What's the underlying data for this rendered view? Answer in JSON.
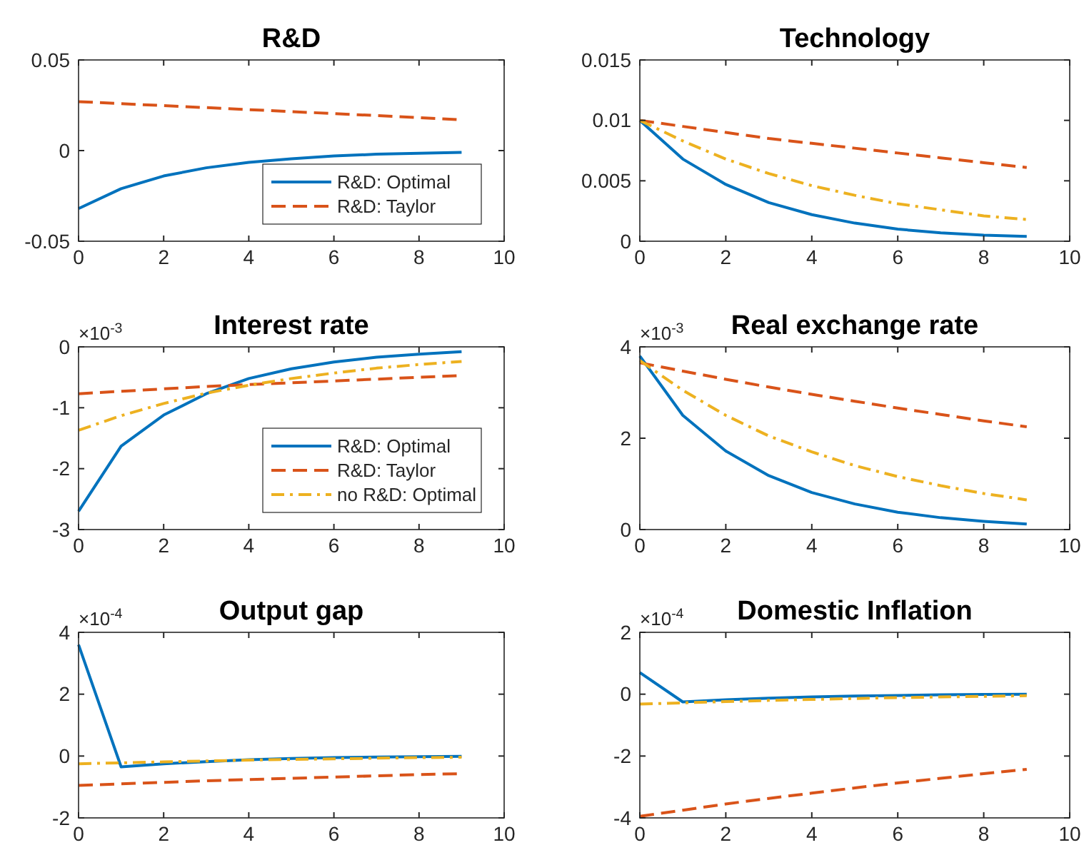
{
  "chart_data": [
    {
      "type": "line",
      "title": "R&D",
      "x": [
        0,
        1,
        2,
        3,
        4,
        5,
        6,
        7,
        8,
        9
      ],
      "xlim": [
        0,
        10
      ],
      "xticks": [
        0,
        2,
        4,
        6,
        8,
        10
      ],
      "ylim": [
        -0.05,
        0.05
      ],
      "yticks": [
        -0.05,
        0,
        0.05
      ],
      "legend": "bottom right",
      "series": [
        {
          "name": "R&D: Optimal",
          "color": "#0072bd",
          "line_style": "solid",
          "values": [
            -0.032,
            -0.021,
            -0.014,
            -0.0095,
            -0.0065,
            -0.0045,
            -0.003,
            -0.002,
            -0.0015,
            -0.001
          ]
        },
        {
          "name": "R&D: Taylor",
          "color": "#d95319",
          "line_style": "dashed",
          "values": [
            0.027,
            0.0259,
            0.0248,
            0.0237,
            0.0226,
            0.0215,
            0.0204,
            0.0193,
            0.0182,
            0.017
          ]
        }
      ]
    },
    {
      "type": "line",
      "title": "Technology",
      "x": [
        0,
        1,
        2,
        3,
        4,
        5,
        6,
        7,
        8,
        9
      ],
      "xlim": [
        0,
        10
      ],
      "xticks": [
        0,
        2,
        4,
        6,
        8,
        10
      ],
      "ylim": [
        0,
        0.015
      ],
      "yticks": [
        0,
        0.005,
        0.01,
        0.015
      ],
      "series": [
        {
          "color": "#0072bd",
          "line_style": "solid",
          "values": [
            0.01,
            0.0068,
            0.0047,
            0.0032,
            0.0022,
            0.0015,
            0.001,
            0.0007,
            0.0005,
            0.0004
          ]
        },
        {
          "color": "#d95319",
          "line_style": "dashed",
          "values": [
            0.01,
            0.0095,
            0.009,
            0.0085,
            0.0081,
            0.0077,
            0.0073,
            0.0069,
            0.0065,
            0.0061
          ]
        },
        {
          "color": "#edb120",
          "line_style": "dashdot",
          "values": [
            0.01,
            0.0083,
            0.0068,
            0.0056,
            0.0046,
            0.0038,
            0.0031,
            0.0026,
            0.0021,
            0.0018
          ]
        }
      ]
    },
    {
      "type": "line",
      "title": "Interest rate",
      "annotations": [
        "×10$^{-3}$"
      ],
      "x": [
        0,
        1,
        2,
        3,
        4,
        5,
        6,
        7,
        8,
        9
      ],
      "xlim": [
        0,
        10
      ],
      "xticks": [
        0,
        2,
        4,
        6,
        8,
        10
      ],
      "ylim": [
        -3,
        0
      ],
      "yticks": [
        -3,
        -2,
        -1,
        0
      ],
      "legend": "bottom right",
      "series": [
        {
          "name": "R&D: Optimal",
          "color": "#0072bd",
          "line_style": "solid",
          "values": [
            -2.7,
            -1.63,
            -1.12,
            -0.77,
            -0.52,
            -0.36,
            -0.25,
            -0.17,
            -0.12,
            -0.08
          ]
        },
        {
          "name": "R&D: Taylor",
          "color": "#d95319",
          "line_style": "dashed",
          "values": [
            -0.77,
            -0.73,
            -0.69,
            -0.65,
            -0.62,
            -0.59,
            -0.56,
            -0.53,
            -0.5,
            -0.47
          ]
        },
        {
          "name": "no R&D: Optimal",
          "color": "#edb120",
          "line_style": "dashdot",
          "values": [
            -1.37,
            -1.13,
            -0.93,
            -0.76,
            -0.63,
            -0.52,
            -0.43,
            -0.35,
            -0.29,
            -0.24
          ]
        }
      ]
    },
    {
      "type": "line",
      "title": "Real exchange rate",
      "annotations": [
        "×10$^{-3}$"
      ],
      "x": [
        0,
        1,
        2,
        3,
        4,
        5,
        6,
        7,
        8,
        9
      ],
      "xlim": [
        0,
        10
      ],
      "xticks": [
        0,
        2,
        4,
        6,
        8,
        10
      ],
      "ylim": [
        0,
        4
      ],
      "yticks": [
        0,
        2,
        4
      ],
      "series": [
        {
          "color": "#0072bd",
          "line_style": "solid",
          "values": [
            3.8,
            2.5,
            1.72,
            1.18,
            0.81,
            0.56,
            0.38,
            0.26,
            0.18,
            0.12
          ]
        },
        {
          "color": "#d95319",
          "line_style": "dashed",
          "values": [
            3.65,
            3.47,
            3.29,
            3.12,
            2.96,
            2.81,
            2.66,
            2.52,
            2.38,
            2.25
          ]
        },
        {
          "color": "#edb120",
          "line_style": "dashdot",
          "values": [
            3.7,
            3.05,
            2.5,
            2.05,
            1.7,
            1.4,
            1.16,
            0.96,
            0.79,
            0.65
          ]
        }
      ]
    },
    {
      "type": "line",
      "title": "Output gap",
      "annotations": [
        "×10$^{-4}$"
      ],
      "x": [
        0,
        1,
        2,
        3,
        4,
        5,
        6,
        7,
        8,
        9
      ],
      "xlim": [
        0,
        10
      ],
      "xticks": [
        0,
        2,
        4,
        6,
        8,
        10
      ],
      "ylim": [
        -2,
        4
      ],
      "yticks": [
        -2,
        0,
        2,
        4
      ],
      "series": [
        {
          "color": "#0072bd",
          "line_style": "solid",
          "values": [
            3.6,
            -0.35,
            -0.25,
            -0.18,
            -0.12,
            -0.08,
            -0.05,
            -0.03,
            -0.02,
            -0.01
          ]
        },
        {
          "color": "#d95319",
          "line_style": "dashed",
          "values": [
            -0.95,
            -0.9,
            -0.85,
            -0.8,
            -0.76,
            -0.72,
            -0.68,
            -0.64,
            -0.6,
            -0.57
          ]
        },
        {
          "color": "#edb120",
          "line_style": "dashdot",
          "values": [
            -0.25,
            -0.22,
            -0.19,
            -0.16,
            -0.13,
            -0.11,
            -0.09,
            -0.07,
            -0.05,
            -0.04
          ]
        }
      ]
    },
    {
      "type": "line",
      "title": "Domestic Inflation",
      "annotations": [
        "×10$^{-4}$"
      ],
      "x": [
        0,
        1,
        2,
        3,
        4,
        5,
        6,
        7,
        8,
        9
      ],
      "xlim": [
        0,
        10
      ],
      "xticks": [
        0,
        2,
        4,
        6,
        8,
        10
      ],
      "ylim": [
        -4,
        2
      ],
      "yticks": [
        -4,
        -2,
        0,
        2
      ],
      "series": [
        {
          "color": "#0072bd",
          "line_style": "solid",
          "values": [
            0.7,
            -0.25,
            -0.18,
            -0.13,
            -0.09,
            -0.06,
            -0.04,
            -0.02,
            -0.01,
            0
          ]
        },
        {
          "color": "#d95319",
          "line_style": "dashed",
          "values": [
            -3.95,
            -3.75,
            -3.55,
            -3.37,
            -3.2,
            -3.03,
            -2.87,
            -2.72,
            -2.57,
            -2.43
          ]
        },
        {
          "color": "#edb120",
          "line_style": "dashdot",
          "values": [
            -0.32,
            -0.28,
            -0.24,
            -0.2,
            -0.17,
            -0.14,
            -0.11,
            -0.09,
            -0.07,
            -0.05
          ]
        }
      ]
    }
  ]
}
